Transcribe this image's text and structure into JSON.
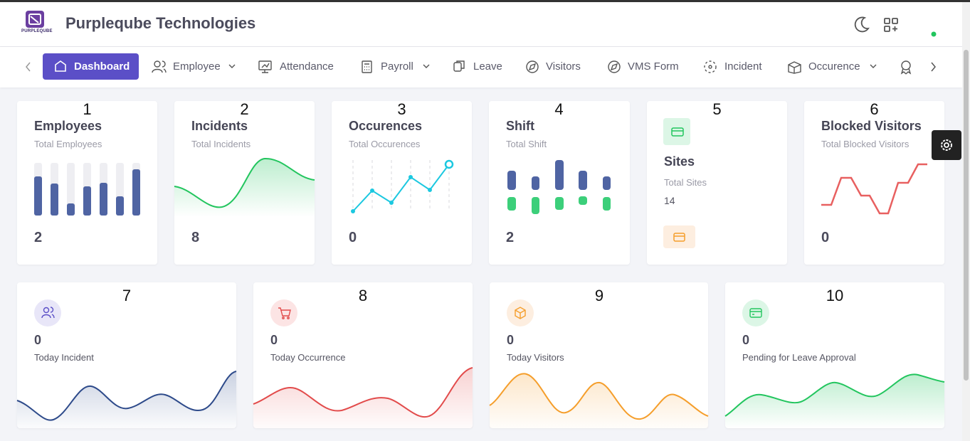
{
  "header": {
    "logo_text": "PURPLEQUBE",
    "title": "Purpleqube Technologies"
  },
  "nav": {
    "items": [
      "Dashboard",
      "Employee",
      "Attendance",
      "Payroll",
      "Leave",
      "Visitors",
      "VMS Form",
      "Incident",
      "Occurence"
    ]
  },
  "summary_cards": [
    {
      "number": 1,
      "title": "Employees",
      "subtitle": "Total Employees",
      "value": 2
    },
    {
      "number": 2,
      "title": "Incidents",
      "subtitle": "Total Incidents",
      "value": 8
    },
    {
      "number": 3,
      "title": "Occurences",
      "subtitle": "Total Occurences",
      "value": 0
    },
    {
      "number": 4,
      "title": "Shift",
      "subtitle": "Total Shift",
      "value": 2
    },
    {
      "number": 5,
      "title": "Sites",
      "subtitle": "Total Sites",
      "value": 14
    },
    {
      "number": 6,
      "title": "Blocked Visitors",
      "subtitle": "Total Blocked Visitors",
      "value": 0
    }
  ],
  "stat_cards": [
    {
      "number": 7,
      "value": 0,
      "label": "Today Incident"
    },
    {
      "number": 8,
      "value": 0,
      "label": "Today Occurrence"
    },
    {
      "number": 9,
      "value": 0,
      "label": "Today Visitors"
    },
    {
      "number": 10,
      "value": 0,
      "label": "Pending for Leave Approval"
    }
  ]
}
